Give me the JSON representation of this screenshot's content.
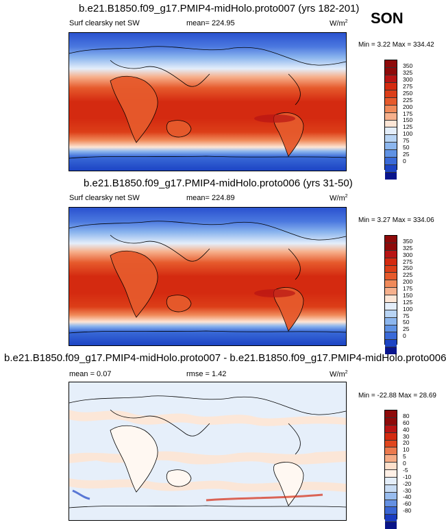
{
  "season": "SON",
  "panels": [
    {
      "id": "top",
      "title": "b.e21.B1850.f09_g17.PMIP4-midHolo.proto007 (yrs 182-201)",
      "left_label": "Surf clearsky net SW",
      "mean_label": "mean= 224.95",
      "unit": "W/m",
      "unit_sup": "2",
      "minmax": "Min =   3.22 Max = 334.42",
      "levels": [
        "350",
        "325",
        "300",
        "275",
        "250",
        "225",
        "200",
        "175",
        "150",
        "125",
        "100",
        "75",
        "50",
        "25",
        "0"
      ]
    },
    {
      "id": "middle",
      "title": "b.e21.B1850.f09_g17.PMIP4-midHolo.proto006 (yrs 31-50)",
      "left_label": "Surf clearsky net SW",
      "mean_label": "mean= 224.89",
      "unit": "W/m",
      "unit_sup": "2",
      "minmax": "Min =   3.27 Max = 334.06",
      "levels": [
        "350",
        "325",
        "300",
        "275",
        "250",
        "225",
        "200",
        "175",
        "150",
        "125",
        "100",
        "75",
        "50",
        "25",
        "0"
      ]
    },
    {
      "id": "bottom",
      "title": "b.e21.B1850.f09_g17.PMIP4-midHolo.proto007 - b.e21.B1850.f09_g17.PMIP4-midHolo.proto006",
      "mean_label": "mean =   0.07",
      "rmse_label": "rmse =   1.42",
      "unit": "W/m",
      "unit_sup": "2",
      "minmax": "Min = -22.88 Max =  28.69",
      "levels": [
        "80",
        "60",
        "40",
        "30",
        "20",
        "10",
        "5",
        "0",
        "-5",
        "-10",
        "-20",
        "-30",
        "-40",
        "-60",
        "-80"
      ]
    }
  ],
  "colors": {
    "abs_scale": [
      "#8e0a0a",
      "#b81414",
      "#d42a10",
      "#dc3e18",
      "#e65a2c",
      "#f08a5a",
      "#f6b08c",
      "#fde6d6",
      "#e4eefa",
      "#b8d4f4",
      "#8cb6ee",
      "#5f92e4",
      "#3a6ad8",
      "#1c44c4",
      "#08148c"
    ],
    "diff_scale": [
      "#8e0a0a",
      "#b81414",
      "#d42a10",
      "#e0461e",
      "#ec7a4e",
      "#f6ac86",
      "#fde0cc",
      "#fff0e6",
      "#e4eefa",
      "#c8dcf4",
      "#98bcee",
      "#6490e2",
      "#3a66d4",
      "#1a3cc0",
      "#081488"
    ]
  }
}
